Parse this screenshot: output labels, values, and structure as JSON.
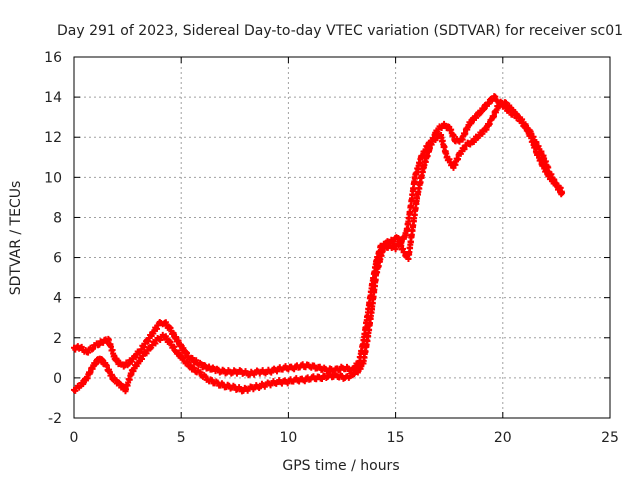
{
  "chart_data": {
    "type": "scatter",
    "title": "Day 291 of 2023, Sidereal Day-to-day VTEC variation (SDTVAR) for receiver sc01",
    "xlabel": "GPS time / hours",
    "ylabel": "SDTVAR / TECUs",
    "xlim": [
      0,
      25
    ],
    "ylim": [
      -2,
      16
    ],
    "xticks": [
      "0",
      "5",
      "10",
      "15",
      "20",
      "25"
    ],
    "yticks": [
      "-2",
      "0",
      "2",
      "4",
      "6",
      "8",
      "10",
      "12",
      "14",
      "16"
    ],
    "grid": true,
    "marker": "+",
    "series": [
      {
        "name": "SDTVAR",
        "color": "#ff0000",
        "x": [
          0.0,
          0.3,
          0.6,
          1.0,
          1.3,
          1.6,
          1.9,
          2.2,
          2.5,
          2.8,
          3.1,
          3.4,
          3.7,
          4.0,
          4.2,
          4.5,
          4.8,
          5.1,
          5.4,
          5.7,
          6.0,
          6.3,
          6.6,
          7.0,
          7.4,
          7.8,
          8.2,
          8.6,
          9.0,
          9.4,
          9.8,
          10.2,
          10.6,
          11.0,
          11.4,
          11.8,
          12.2,
          12.6,
          13.0,
          13.3,
          13.5,
          13.7,
          13.9,
          14.1,
          14.3,
          14.5,
          14.8,
          15.1,
          15.4,
          15.6,
          15.8,
          16.0,
          16.3,
          16.6,
          16.9,
          17.2,
          17.5,
          17.8,
          18.1,
          18.4,
          18.7,
          19.0,
          19.3,
          19.6,
          19.8,
          20.1,
          20.4,
          20.7,
          21.0,
          21.3,
          21.6,
          21.9,
          22.2,
          22.5,
          22.8
        ],
        "y": [
          1.5,
          1.5,
          1.3,
          1.6,
          1.8,
          1.9,
          1.0,
          0.6,
          0.7,
          1.0,
          1.4,
          1.8,
          2.3,
          2.7,
          2.8,
          2.4,
          1.9,
          1.4,
          1.0,
          0.8,
          0.6,
          0.5,
          0.4,
          0.3,
          0.3,
          0.3,
          0.2,
          0.3,
          0.3,
          0.4,
          0.5,
          0.5,
          0.6,
          0.6,
          0.5,
          0.4,
          0.4,
          0.5,
          0.4,
          0.8,
          1.8,
          3.2,
          4.6,
          5.8,
          6.5,
          6.7,
          6.8,
          7.0,
          6.2,
          6.0,
          7.5,
          9.0,
          10.5,
          11.5,
          12.3,
          12.6,
          12.5,
          11.8,
          11.9,
          12.6,
          13.0,
          13.3,
          13.7,
          14.0,
          13.8,
          13.5,
          13.2,
          13.0,
          12.7,
          12.0,
          11.2,
          10.5,
          10.0,
          9.6,
          9.3
        ],
        "x2": [
          0.0,
          0.3,
          0.6,
          0.9,
          1.2,
          1.5,
          1.8,
          2.1,
          2.4,
          2.7,
          3.0,
          3.3,
          3.6,
          3.9,
          4.2,
          4.5,
          4.8,
          5.1,
          5.5,
          5.9,
          6.3,
          6.7,
          7.1,
          7.5,
          7.9,
          8.3,
          8.7,
          9.1,
          9.5,
          9.9,
          10.3,
          10.7,
          11.1,
          11.5,
          11.9,
          12.3,
          12.7,
          13.0,
          13.3,
          13.5,
          13.7,
          13.9,
          14.1,
          14.4,
          14.7,
          15.0,
          15.2,
          15.5,
          15.7,
          15.9,
          16.2,
          16.5,
          16.8,
          17.1,
          17.4,
          17.7,
          18.0,
          18.3,
          18.6,
          18.9,
          19.2,
          19.5,
          19.8,
          20.1,
          20.4,
          20.7,
          21.0,
          21.3,
          21.6,
          21.9,
          22.2,
          22.5,
          22.8
        ],
        "y2": [
          -0.6,
          -0.4,
          0.0,
          0.6,
          1.0,
          0.6,
          0.0,
          -0.3,
          -0.6,
          0.3,
          0.8,
          1.2,
          1.6,
          1.9,
          2.1,
          1.7,
          1.3,
          0.9,
          0.5,
          0.2,
          -0.1,
          -0.3,
          -0.4,
          -0.5,
          -0.6,
          -0.5,
          -0.4,
          -0.3,
          -0.2,
          -0.2,
          -0.1,
          -0.1,
          0.0,
          0.0,
          0.1,
          0.1,
          0.0,
          0.2,
          0.4,
          0.8,
          2.0,
          3.5,
          5.2,
          6.4,
          6.6,
          6.5,
          6.7,
          7.2,
          8.5,
          10.0,
          11.0,
          11.6,
          11.9,
          12.1,
          11.0,
          10.5,
          11.2,
          11.6,
          11.8,
          12.1,
          12.4,
          12.9,
          13.6,
          13.7,
          13.4,
          13.0,
          12.6,
          12.2,
          11.6,
          11.0,
          10.2,
          9.6,
          9.1
        ]
      }
    ]
  }
}
